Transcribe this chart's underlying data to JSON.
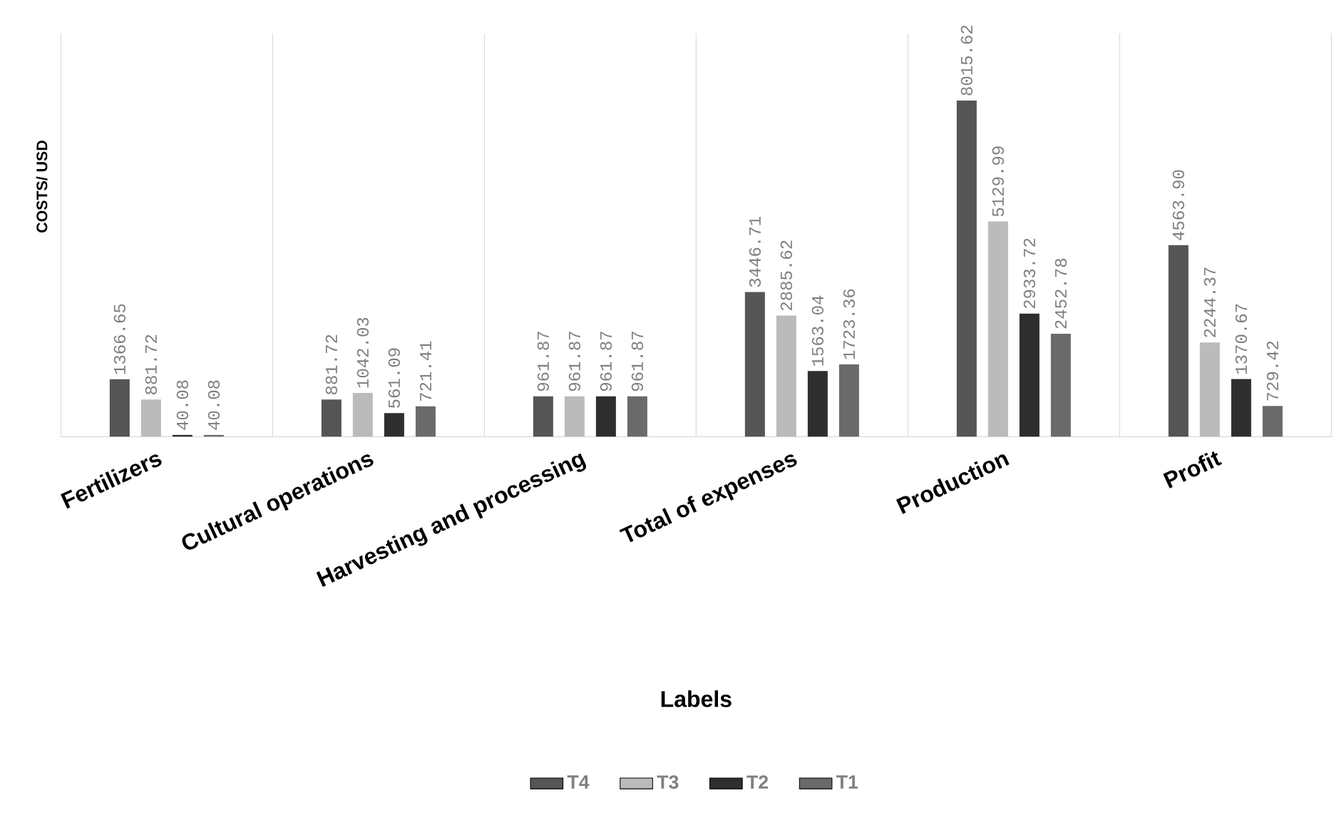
{
  "chart_data": {
    "type": "bar",
    "xlabel": "Labels",
    "ylabel": "COSTS/ USD",
    "categories": [
      "Fertilizers",
      "Cultural operations",
      "Harvesting and processing",
      "Total of expenses",
      "Production",
      "Profit"
    ],
    "series": [
      {
        "name": "T4",
        "color": "#555555",
        "values": [
          1366.65,
          881.72,
          961.87,
          3446.71,
          8015.62,
          4563.9
        ],
        "value_labels": [
          "1366.65",
          "881.72",
          "961.87",
          "3446.71",
          "8015.62",
          "4563.90"
        ]
      },
      {
        "name": "T3",
        "color": "#bbbbbb",
        "values": [
          881.72,
          1042.03,
          961.87,
          2885.62,
          5129.99,
          2244.37
        ],
        "value_labels": [
          "881.72",
          "1042.03",
          "961.87",
          "2885.62",
          "5129.99",
          "2244.37"
        ]
      },
      {
        "name": "T2",
        "color": "#2e2e2e",
        "values": [
          40.08,
          561.09,
          961.87,
          1563.04,
          2933.72,
          1370.67
        ],
        "value_labels": [
          "40.08",
          "561.09",
          "961.87",
          "1563.04",
          "2933.72",
          "1370.67"
        ]
      },
      {
        "name": "T1",
        "color": "#6a6a6a",
        "values": [
          40.08,
          721.41,
          961.87,
          1723.36,
          2452.78,
          729.42
        ],
        "value_labels": [
          "40.08",
          "721.41",
          "961.87",
          "1723.36",
          "2452.78",
          "729.42"
        ]
      }
    ],
    "grid": "x",
    "legend": "bottom"
  }
}
